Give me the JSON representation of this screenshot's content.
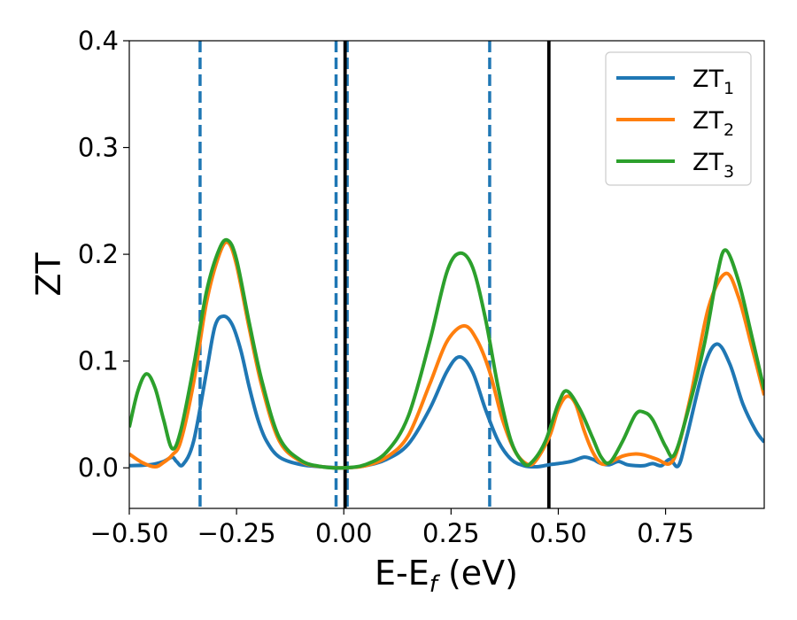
{
  "chart_data": {
    "type": "line",
    "title": "",
    "xlabel": {
      "main": "E-E",
      "subscript": "f",
      "suffix": " (eV)"
    },
    "ylabel": "ZT",
    "xlim": [
      -0.5,
      0.98
    ],
    "ylim": [
      -0.038,
      0.4
    ],
    "xticks": [
      {
        "value": -0.5,
        "label": "−0.50"
      },
      {
        "value": -0.25,
        "label": "−0.25"
      },
      {
        "value": 0.0,
        "label": "0.00"
      },
      {
        "value": 0.25,
        "label": "0.25"
      },
      {
        "value": 0.5,
        "label": "0.50"
      },
      {
        "value": 0.75,
        "label": "0.75"
      }
    ],
    "yticks": [
      {
        "value": 0.0,
        "label": "0.0"
      },
      {
        "value": 0.1,
        "label": "0.1"
      },
      {
        "value": 0.2,
        "label": "0.2"
      },
      {
        "value": 0.3,
        "label": "0.3"
      },
      {
        "value": 0.4,
        "label": "0.4"
      }
    ],
    "grid": false,
    "legend_position": "top-right",
    "series": [
      {
        "name": "ZT",
        "subscript": "1",
        "color": "#1f77b4",
        "points": [
          [
            -0.5,
            0.002
          ],
          [
            -0.45,
            0.003
          ],
          [
            -0.42,
            0.006
          ],
          [
            -0.4,
            0.01
          ],
          [
            -0.39,
            0.006
          ],
          [
            -0.375,
            0.003
          ],
          [
            -0.35,
            0.025
          ],
          [
            -0.32,
            0.09
          ],
          [
            -0.3,
            0.133
          ],
          [
            -0.28,
            0.142
          ],
          [
            -0.26,
            0.134
          ],
          [
            -0.24,
            0.11
          ],
          [
            -0.22,
            0.075
          ],
          [
            -0.2,
            0.045
          ],
          [
            -0.18,
            0.025
          ],
          [
            -0.15,
            0.01
          ],
          [
            -0.1,
            0.003
          ],
          [
            -0.05,
            0.001
          ],
          [
            0.0,
            0.0
          ],
          [
            0.05,
            0.002
          ],
          [
            0.1,
            0.008
          ],
          [
            0.15,
            0.022
          ],
          [
            0.2,
            0.055
          ],
          [
            0.24,
            0.09
          ],
          [
            0.27,
            0.104
          ],
          [
            0.3,
            0.09
          ],
          [
            0.33,
            0.055
          ],
          [
            0.36,
            0.025
          ],
          [
            0.39,
            0.008
          ],
          [
            0.42,
            0.002
          ],
          [
            0.45,
            0.001
          ],
          [
            0.48,
            0.003
          ],
          [
            0.5,
            0.004
          ],
          [
            0.53,
            0.006
          ],
          [
            0.56,
            0.01
          ],
          [
            0.58,
            0.008
          ],
          [
            0.6,
            0.004
          ],
          [
            0.62,
            0.003
          ],
          [
            0.64,
            0.006
          ],
          [
            0.66,
            0.003
          ],
          [
            0.68,
            0.002
          ],
          [
            0.7,
            0.002
          ],
          [
            0.72,
            0.004
          ],
          [
            0.74,
            0.002
          ],
          [
            0.76,
            0.008
          ],
          [
            0.78,
            0.002
          ],
          [
            0.8,
            0.03
          ],
          [
            0.84,
            0.095
          ],
          [
            0.87,
            0.116
          ],
          [
            0.9,
            0.097
          ],
          [
            0.93,
            0.06
          ],
          [
            0.96,
            0.035
          ],
          [
            0.98,
            0.024
          ]
        ]
      },
      {
        "name": "ZT",
        "subscript": "2",
        "color": "#ff7f0e",
        "points": [
          [
            -0.5,
            0.013
          ],
          [
            -0.47,
            0.005
          ],
          [
            -0.44,
            0.001
          ],
          [
            -0.42,
            0.005
          ],
          [
            -0.4,
            0.012
          ],
          [
            -0.38,
            0.025
          ],
          [
            -0.35,
            0.08
          ],
          [
            -0.32,
            0.155
          ],
          [
            -0.29,
            0.2
          ],
          [
            -0.27,
            0.211
          ],
          [
            -0.25,
            0.19
          ],
          [
            -0.22,
            0.13
          ],
          [
            -0.19,
            0.075
          ],
          [
            -0.15,
            0.025
          ],
          [
            -0.1,
            0.006
          ],
          [
            -0.05,
            0.001
          ],
          [
            0.0,
            0.0
          ],
          [
            0.05,
            0.002
          ],
          [
            0.1,
            0.01
          ],
          [
            0.15,
            0.03
          ],
          [
            0.2,
            0.078
          ],
          [
            0.24,
            0.118
          ],
          [
            0.28,
            0.133
          ],
          [
            0.31,
            0.12
          ],
          [
            0.34,
            0.09
          ],
          [
            0.37,
            0.045
          ],
          [
            0.4,
            0.015
          ],
          [
            0.43,
            0.003
          ],
          [
            0.45,
            0.008
          ],
          [
            0.48,
            0.03
          ],
          [
            0.5,
            0.055
          ],
          [
            0.52,
            0.067
          ],
          [
            0.54,
            0.06
          ],
          [
            0.56,
            0.035
          ],
          [
            0.58,
            0.015
          ],
          [
            0.6,
            0.004
          ],
          [
            0.62,
            0.005
          ],
          [
            0.65,
            0.011
          ],
          [
            0.68,
            0.013
          ],
          [
            0.7,
            0.012
          ],
          [
            0.73,
            0.008
          ],
          [
            0.76,
            0.004
          ],
          [
            0.78,
            0.02
          ],
          [
            0.81,
            0.07
          ],
          [
            0.85,
            0.15
          ],
          [
            0.89,
            0.182
          ],
          [
            0.92,
            0.16
          ],
          [
            0.95,
            0.115
          ],
          [
            0.98,
            0.068
          ]
        ]
      },
      {
        "name": "ZT",
        "subscript": "3",
        "color": "#2ca02c",
        "points": [
          [
            -0.5,
            0.038
          ],
          [
            -0.48,
            0.072
          ],
          [
            -0.46,
            0.088
          ],
          [
            -0.44,
            0.075
          ],
          [
            -0.42,
            0.045
          ],
          [
            -0.4,
            0.018
          ],
          [
            -0.38,
            0.035
          ],
          [
            -0.35,
            0.095
          ],
          [
            -0.32,
            0.165
          ],
          [
            -0.29,
            0.205
          ],
          [
            -0.27,
            0.213
          ],
          [
            -0.25,
            0.195
          ],
          [
            -0.22,
            0.135
          ],
          [
            -0.19,
            0.08
          ],
          [
            -0.15,
            0.028
          ],
          [
            -0.1,
            0.007
          ],
          [
            -0.05,
            0.001
          ],
          [
            0.0,
            0.0
          ],
          [
            0.05,
            0.003
          ],
          [
            0.1,
            0.015
          ],
          [
            0.15,
            0.048
          ],
          [
            0.2,
            0.118
          ],
          [
            0.24,
            0.183
          ],
          [
            0.27,
            0.201
          ],
          [
            0.3,
            0.188
          ],
          [
            0.33,
            0.14
          ],
          [
            0.36,
            0.075
          ],
          [
            0.39,
            0.025
          ],
          [
            0.42,
            0.004
          ],
          [
            0.44,
            0.006
          ],
          [
            0.47,
            0.025
          ],
          [
            0.5,
            0.06
          ],
          [
            0.52,
            0.072
          ],
          [
            0.55,
            0.055
          ],
          [
            0.58,
            0.028
          ],
          [
            0.6,
            0.01
          ],
          [
            0.62,
            0.005
          ],
          [
            0.65,
            0.025
          ],
          [
            0.68,
            0.05
          ],
          [
            0.7,
            0.052
          ],
          [
            0.72,
            0.045
          ],
          [
            0.75,
            0.02
          ],
          [
            0.77,
            0.012
          ],
          [
            0.8,
            0.05
          ],
          [
            0.84,
            0.115
          ],
          [
            0.87,
            0.18
          ],
          [
            0.89,
            0.204
          ],
          [
            0.92,
            0.175
          ],
          [
            0.95,
            0.125
          ],
          [
            0.98,
            0.073
          ]
        ]
      }
    ],
    "vlines": [
      {
        "x": -0.335,
        "style": "dashed",
        "color": "#1f77b4"
      },
      {
        "x": -0.018,
        "style": "dashed",
        "color": "#1f77b4"
      },
      {
        "x": 0.008,
        "style": "dashed",
        "color": "#1f77b4"
      },
      {
        "x": 0.34,
        "style": "dashed",
        "color": "#1f77b4"
      },
      {
        "x": 0.003,
        "style": "solid",
        "color": "#000000"
      },
      {
        "x": 0.478,
        "style": "solid",
        "color": "#000000"
      }
    ]
  }
}
